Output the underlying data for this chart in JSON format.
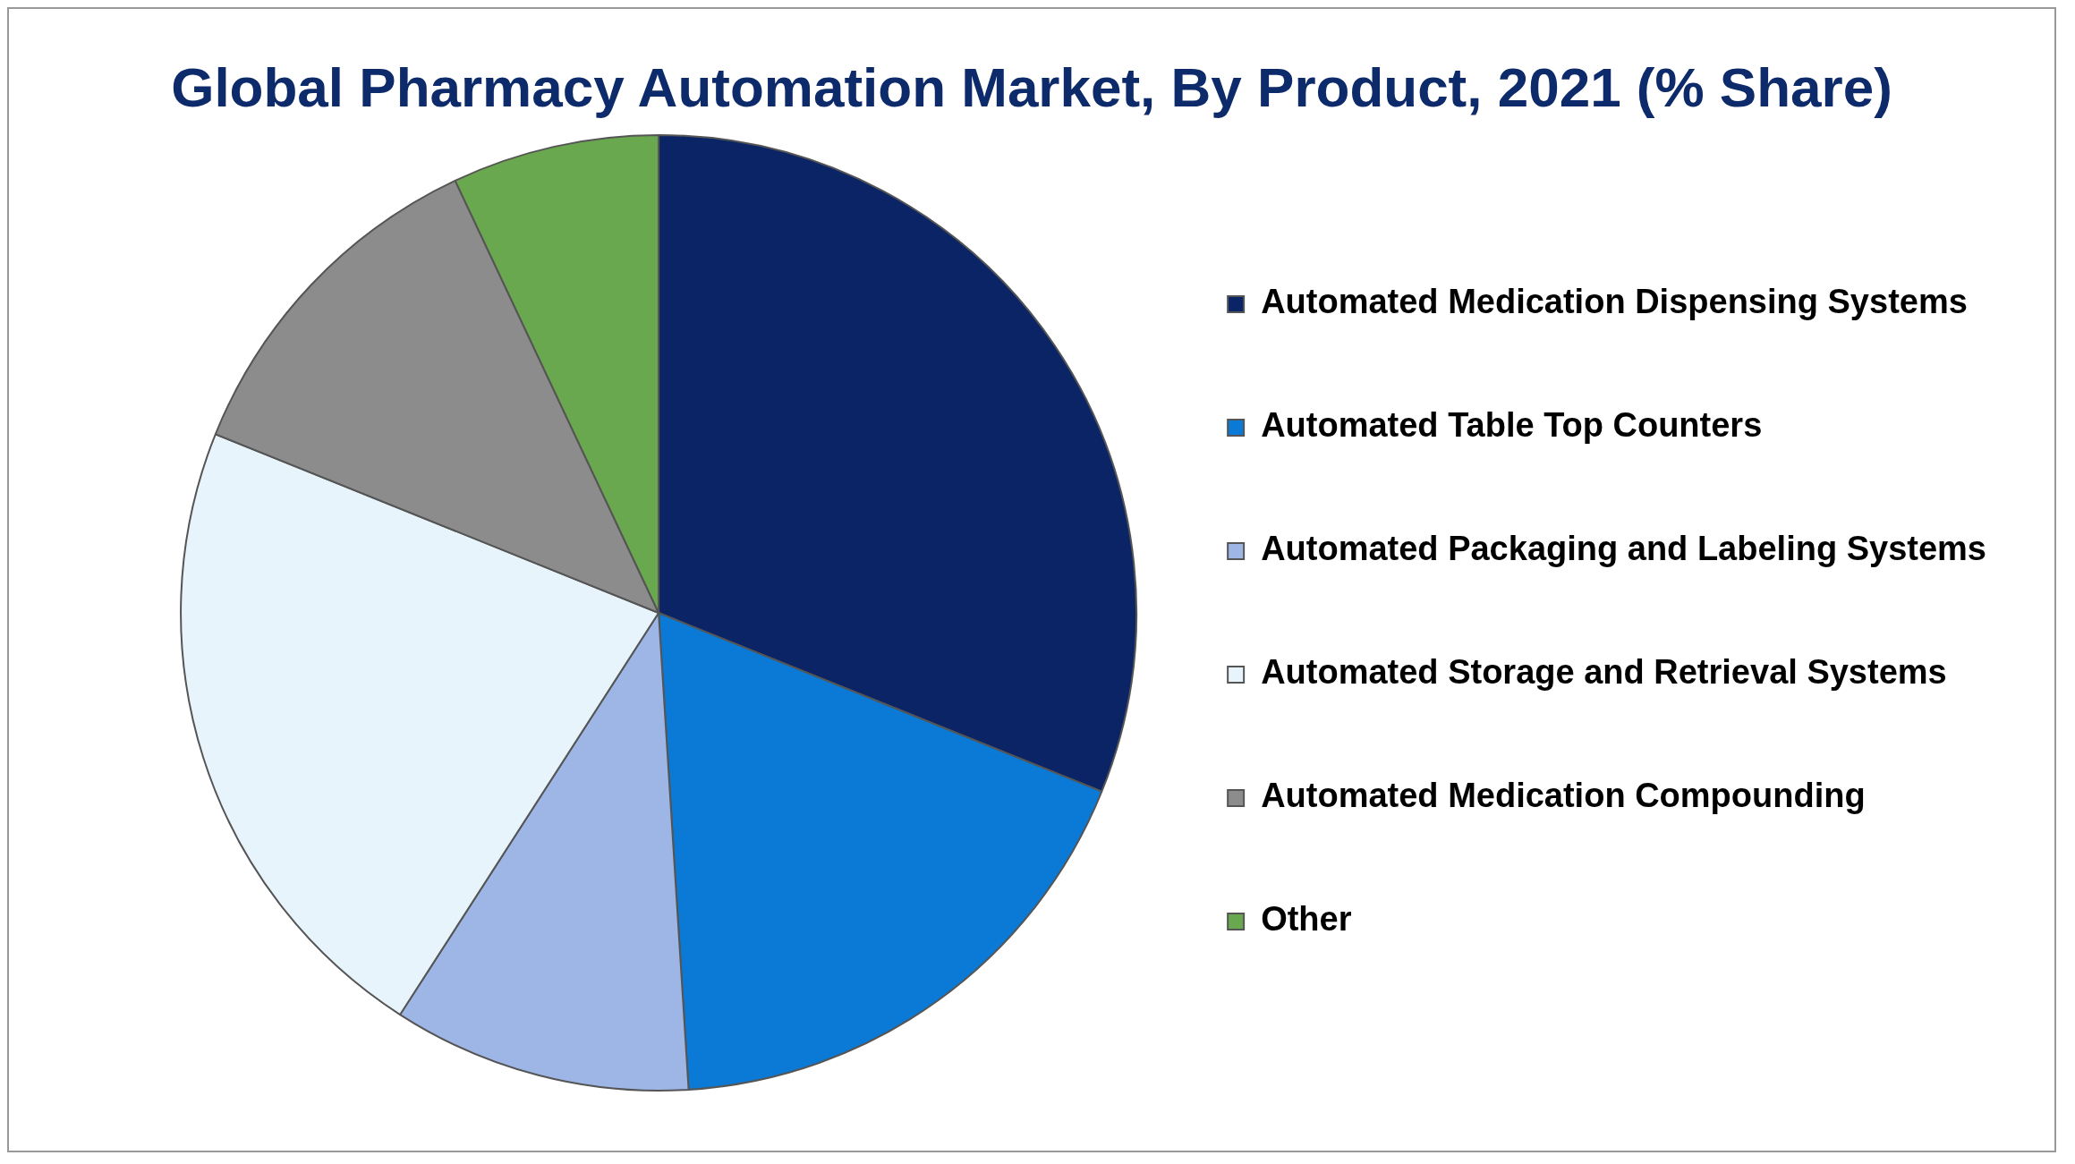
{
  "chart_data": {
    "type": "pie",
    "title": "Global Pharmacy Automation Market, By Product, 2021 (% Share)",
    "categories": [
      "Automated Medication Dispensing Systems",
      "Automated Table Top Counters",
      "Automated Packaging and Labeling Systems",
      "Automated Storage and Retrieval Systems",
      "Automated Medication Compounding",
      "Other"
    ],
    "values": [
      31.1,
      17.9,
      10.1,
      22.0,
      11.9,
      7.0
    ],
    "colors": [
      "#0a2466",
      "#0a7ad6",
      "#9db6e6",
      "#e8f4fc",
      "#8c8c8c",
      "#6aa84f"
    ],
    "legend": "right"
  }
}
